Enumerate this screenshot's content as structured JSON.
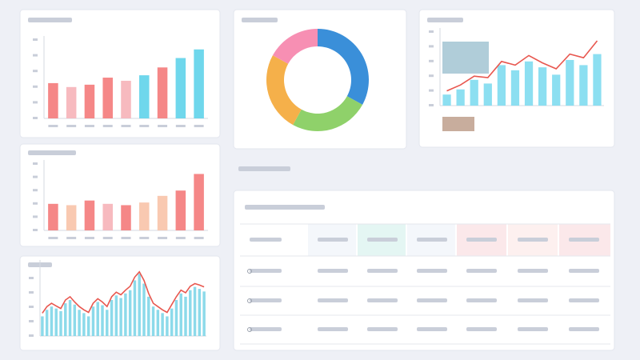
{
  "chart_data": [
    {
      "type": "bar",
      "ylim": [
        0,
        100
      ],
      "values": [
        45,
        40,
        43,
        52,
        48,
        55,
        65,
        77,
        88
      ],
      "colors": [
        "#f47a7a",
        "#f6b3b8",
        "#f47a7a",
        "#f47a7a",
        "#f6b3b8",
        "#5fd3ea",
        "#f47a7a",
        "#5fd3ea",
        "#5fd3ea"
      ]
    },
    {
      "type": "pie",
      "values": [
        33,
        25,
        25,
        17
      ],
      "colors": [
        "#3a8fd9",
        "#8fd16a",
        "#f5b04a",
        "#f78fb3"
      ]
    },
    {
      "type": "combo",
      "ylim": [
        0,
        100
      ],
      "series": [
        {
          "color": "#7fdcef",
          "values": [
            15,
            22,
            35,
            30,
            55,
            48,
            60,
            52,
            42,
            62,
            55,
            70
          ]
        },
        {
          "color": "#e8574f",
          "values": [
            20,
            28,
            40,
            38,
            60,
            55,
            68,
            58,
            50,
            70,
            65,
            88
          ]
        }
      ]
    },
    {
      "type": "bar",
      "ylim": [
        0,
        100
      ],
      "values": [
        40,
        38,
        45,
        40,
        38,
        42,
        52,
        60,
        85
      ],
      "colors": [
        "#f47a7a",
        "#f8c3a8",
        "#f47a7a",
        "#f6b3b8",
        "#f47a7a",
        "#f8c3a8",
        "#f8c3a8",
        "#f47a7a",
        "#f47a7a"
      ]
    },
    {
      "type": "combo",
      "ylim": [
        0,
        110
      ],
      "series": [
        {
          "color": "#7fd6e8",
          "values": [
            30,
            40,
            45,
            42,
            38,
            50,
            55,
            48,
            40,
            35,
            30,
            45,
            52,
            47,
            40,
            55,
            62,
            58,
            65,
            70,
            85,
            95,
            80,
            60,
            45,
            40,
            35,
            30,
            42,
            55,
            65,
            60,
            70,
            75,
            72,
            68
          ]
        },
        {
          "color": "#e8574f",
          "values": [
            35,
            45,
            50,
            46,
            42,
            55,
            60,
            52,
            45,
            40,
            36,
            50,
            57,
            52,
            45,
            60,
            67,
            63,
            70,
            76,
            90,
            98,
            85,
            65,
            50,
            45,
            40,
            36,
            48,
            60,
            70,
            66,
            76,
            80,
            78,
            75
          ]
        }
      ]
    }
  ]
}
